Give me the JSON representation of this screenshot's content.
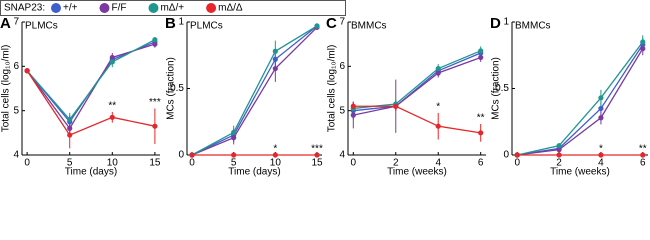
{
  "legend_title": "SNAP23:",
  "chart_data": [
    {
      "type": "line",
      "panel": "A",
      "annotation": "PLMCs",
      "ylabel": "Total cells (log₁₀/ml)",
      "xlabel": "Time (days)",
      "x": [
        0,
        5,
        10,
        15
      ],
      "xlim": [
        -0.6,
        15.6
      ],
      "xticks": [
        0,
        5,
        10,
        15
      ],
      "ylim": [
        4,
        7
      ],
      "yticks": [
        4,
        5,
        6,
        7
      ],
      "series": [
        {
          "name": "+/+",
          "color": "#3f5fcf",
          "values": [
            5.9,
            4.75,
            6.15,
            6.55
          ],
          "errors": [
            0.05,
            0.15,
            0.1,
            0.08
          ]
        },
        {
          "name": "F/F",
          "color": "#7a3aa0",
          "values": [
            5.9,
            4.6,
            6.2,
            6.5
          ],
          "errors": [
            0.05,
            0.2,
            0.1,
            0.08
          ]
        },
        {
          "name": "mΔ/+",
          "color": "#21968e",
          "values": [
            5.9,
            4.8,
            6.1,
            6.6
          ],
          "errors": [
            0.05,
            0.15,
            0.12,
            0.06
          ]
        },
        {
          "name": "mΔ/Δ",
          "color": "#e6262a",
          "values": [
            5.9,
            4.45,
            4.85,
            4.65
          ],
          "errors": [
            0.05,
            0.3,
            0.12,
            0.4
          ]
        }
      ],
      "stars": [
        {
          "x": 10,
          "text": "**"
        },
        {
          "x": 15,
          "text": "***"
        }
      ]
    },
    {
      "type": "line",
      "panel": "B",
      "annotation": "PLMCs",
      "ylabel": "MCs (fraction)",
      "xlabel": "Time (days)",
      "x": [
        0,
        5,
        10,
        15
      ],
      "xlim": [
        -0.6,
        15.6
      ],
      "xticks": [
        0,
        5,
        10,
        15
      ],
      "ylim": [
        0,
        1
      ],
      "yticks": [
        0,
        0.5,
        1
      ],
      "series": [
        {
          "name": "+/+",
          "color": "#3f5fcf",
          "values": [
            0,
            0.15,
            0.72,
            0.97
          ],
          "errors": [
            0,
            0.05,
            0.08,
            0.02
          ]
        },
        {
          "name": "F/F",
          "color": "#7a3aa0",
          "values": [
            0,
            0.13,
            0.65,
            0.96
          ],
          "errors": [
            0,
            0.05,
            0.1,
            0.02
          ]
        },
        {
          "name": "mΔ/+",
          "color": "#21968e",
          "values": [
            0,
            0.17,
            0.78,
            0.97
          ],
          "errors": [
            0,
            0.05,
            0.08,
            0.02
          ]
        },
        {
          "name": "mΔ/Δ",
          "color": "#e6262a",
          "values": [
            0,
            0,
            0,
            0
          ],
          "errors": [
            0,
            0,
            0,
            0
          ]
        }
      ],
      "stars": [
        {
          "x": 10,
          "text": "*"
        },
        {
          "x": 15,
          "text": "***"
        }
      ]
    },
    {
      "type": "line",
      "panel": "C",
      "annotation": "BMMCs",
      "ylabel": "Total cells (log₁₀/ml)",
      "xlabel": "Time (weeks)",
      "x": [
        0,
        2,
        4,
        6
      ],
      "xlim": [
        -0.25,
        6.25
      ],
      "xticks": [
        0,
        2,
        4,
        6
      ],
      "ylim": [
        4,
        7
      ],
      "yticks": [
        4,
        5,
        6,
        7
      ],
      "series": [
        {
          "name": "+/+",
          "color": "#3f5fcf",
          "values": [
            5.0,
            5.1,
            5.9,
            6.3
          ],
          "errors": [
            0.2,
            0.1,
            0.1,
            0.1
          ]
        },
        {
          "name": "F/F",
          "color": "#7a3aa0",
          "values": [
            4.9,
            5.1,
            5.85,
            6.2
          ],
          "errors": [
            0.3,
            0.6,
            0.1,
            0.1
          ]
        },
        {
          "name": "mΔ/+",
          "color": "#21968e",
          "values": [
            5.05,
            5.15,
            5.95,
            6.35
          ],
          "errors": [
            0.15,
            0.1,
            0.1,
            0.1
          ]
        },
        {
          "name": "mΔ/Δ",
          "color": "#e6262a",
          "values": [
            5.1,
            5.1,
            4.65,
            4.5
          ],
          "errors": [
            0.1,
            0.1,
            0.3,
            0.2
          ]
        }
      ],
      "stars": [
        {
          "x": 4,
          "text": "*"
        },
        {
          "x": 6,
          "text": "**"
        }
      ]
    },
    {
      "type": "line",
      "panel": "D",
      "annotation": "BMMCs",
      "ylabel": "MCs (fraction)",
      "xlabel": "Time (weeks)",
      "x": [
        0,
        2,
        4,
        6
      ],
      "xlim": [
        -0.25,
        6.25
      ],
      "xticks": [
        0,
        2,
        4,
        6
      ],
      "ylim": [
        0,
        1
      ],
      "yticks": [
        0,
        0.5,
        1
      ],
      "series": [
        {
          "name": "+/+",
          "color": "#3f5fcf",
          "values": [
            0,
            0.05,
            0.35,
            0.83
          ],
          "errors": [
            0,
            0.02,
            0.05,
            0.05
          ]
        },
        {
          "name": "F/F",
          "color": "#7a3aa0",
          "values": [
            0,
            0.04,
            0.28,
            0.8
          ],
          "errors": [
            0,
            0.02,
            0.05,
            0.05
          ]
        },
        {
          "name": "mΔ/+",
          "color": "#21968e",
          "values": [
            0,
            0.07,
            0.43,
            0.85
          ],
          "errors": [
            0,
            0.02,
            0.06,
            0.05
          ]
        },
        {
          "name": "mΔ/Δ",
          "color": "#e6262a",
          "values": [
            0,
            0,
            0,
            0
          ],
          "errors": [
            0,
            0,
            0,
            0
          ]
        }
      ],
      "stars": [
        {
          "x": 4,
          "text": "*"
        },
        {
          "x": 6,
          "text": "**"
        }
      ]
    }
  ]
}
